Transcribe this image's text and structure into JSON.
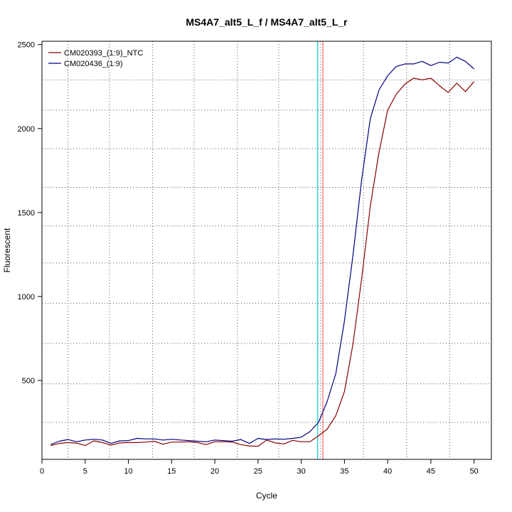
{
  "chart_data": {
    "type": "line",
    "title": "MS4A7_alt5_L_f / MS4A7_alt5_L_r",
    "xlabel": "Cycle",
    "ylabel": "Fluorescent",
    "xlim": [
      0,
      52
    ],
    "ylim": [
      30,
      2520
    ],
    "x_ticks": [
      0,
      5,
      10,
      15,
      20,
      25,
      30,
      35,
      40,
      45,
      50
    ],
    "x_tick_labels": [
      "0",
      "5",
      "10",
      "15",
      "20",
      "25",
      "30",
      "35",
      "40",
      "45",
      "50"
    ],
    "y_ticks": [
      500,
      1000,
      1500,
      2000,
      2500
    ],
    "y_tick_labels": [
      "500",
      "1000",
      "1500",
      "2000",
      "2500"
    ],
    "grid": true,
    "vertical_grid_x": [
      3,
      7.8,
      12.8,
      17.6,
      22.6,
      27.4,
      32.2,
      37.2,
      42.2,
      47.2
    ],
    "horizontal_grid_y": [
      250,
      480,
      720,
      960,
      1200,
      1420,
      1650,
      1880,
      2110,
      2290
    ],
    "legend_position": "top-left",
    "threshold_lines": [
      {
        "x": 31.9,
        "color": "#00cccc"
      },
      {
        "x": 32.5,
        "color": "#ff6666"
      }
    ],
    "series": [
      {
        "name": "CM020393_(1:9)_NTC",
        "color": "#8b0000",
        "x": [
          1,
          2,
          3,
          4,
          5,
          6,
          7,
          8,
          9,
          10,
          11,
          12,
          13,
          14,
          15,
          16,
          17,
          18,
          19,
          20,
          21,
          22,
          23,
          24,
          25,
          26,
          27,
          28,
          29,
          30,
          31,
          32,
          33,
          34,
          35,
          36,
          37,
          38,
          39,
          40,
          41,
          42,
          43,
          44,
          45,
          46,
          47,
          48,
          49,
          50
        ],
        "y": [
          112,
          125,
          130,
          127,
          112,
          140,
          130,
          115,
          128,
          130,
          130,
          133,
          138,
          120,
          133,
          133,
          135,
          130,
          118,
          135,
          135,
          133,
          118,
          110,
          108,
          145,
          128,
          122,
          143,
          135,
          135,
          170,
          210,
          290,
          435,
          720,
          1110,
          1540,
          1860,
          2110,
          2205,
          2265,
          2300,
          2290,
          2300,
          2255,
          2215,
          2270,
          2220,
          2280
        ]
      },
      {
        "name": "CM020436_(1:9)",
        "color": "#000080",
        "x": [
          1,
          2,
          3,
          4,
          5,
          6,
          7,
          8,
          9,
          10,
          11,
          12,
          13,
          14,
          15,
          16,
          17,
          18,
          19,
          20,
          21,
          22,
          23,
          24,
          25,
          26,
          27,
          28,
          29,
          30,
          31,
          32,
          33,
          34,
          35,
          36,
          37,
          38,
          39,
          40,
          41,
          42,
          43,
          44,
          45,
          46,
          47,
          48,
          49,
          50
        ],
        "y": [
          118,
          138,
          148,
          135,
          145,
          150,
          145,
          125,
          140,
          142,
          155,
          152,
          152,
          145,
          150,
          145,
          142,
          138,
          135,
          145,
          142,
          138,
          148,
          125,
          155,
          148,
          152,
          150,
          155,
          162,
          195,
          250,
          375,
          540,
          855,
          1250,
          1700,
          2060,
          2230,
          2315,
          2370,
          2385,
          2385,
          2400,
          2375,
          2395,
          2390,
          2425,
          2400,
          2355
        ]
      }
    ]
  }
}
